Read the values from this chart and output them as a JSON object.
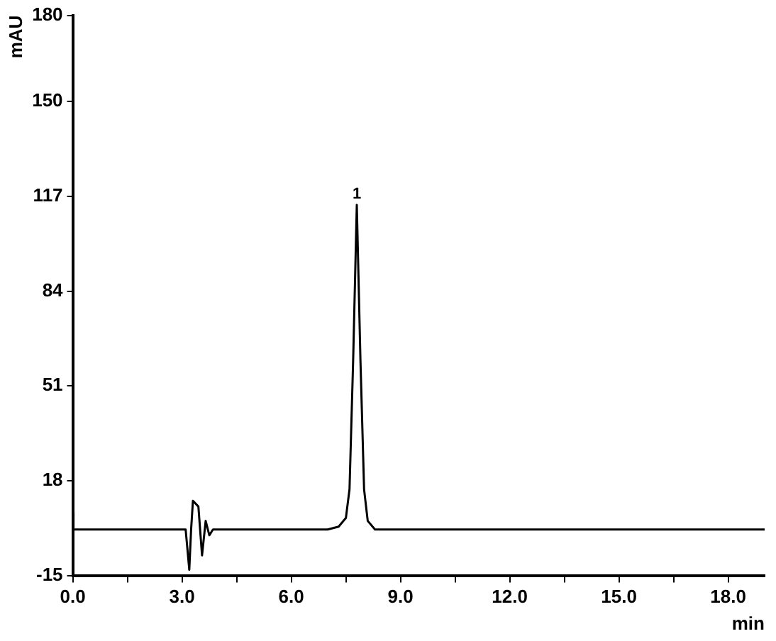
{
  "chart_data": {
    "type": "line",
    "xlabel": "min",
    "ylabel": "mAU",
    "series": [
      {
        "color": "#000000",
        "x": [
          0,
          0.02,
          3.1,
          3.2,
          3.25,
          3.3,
          3.45,
          3.55,
          3.65,
          3.75,
          3.85,
          7.0,
          7.3,
          7.5,
          7.6,
          7.7,
          7.8,
          7.9,
          8.0,
          8.1,
          8.3,
          19
        ],
        "values": [
          7,
          1,
          1,
          -13,
          1,
          11,
          9,
          -8,
          4,
          -1,
          1,
          1,
          2,
          5,
          15,
          60,
          114,
          60,
          15,
          4,
          1,
          1
        ]
      }
    ],
    "xlim": [
      0,
      19
    ],
    "xticks": [
      {
        "value": 0,
        "label": "0.0"
      },
      {
        "value": 1.5,
        "label": null
      },
      {
        "value": 3,
        "label": "3.0"
      },
      {
        "value": 4.5,
        "label": null
      },
      {
        "value": 6,
        "label": "6.0"
      },
      {
        "value": 7.5,
        "label": null
      },
      {
        "value": 9,
        "label": "9.0"
      },
      {
        "value": 10.5,
        "label": null
      },
      {
        "value": 12,
        "label": "12.0"
      },
      {
        "value": 13.5,
        "label": null
      },
      {
        "value": 15,
        "label": "15.0"
      },
      {
        "value": 16.5,
        "label": null
      },
      {
        "value": 18,
        "label": "18.0"
      }
    ],
    "ylim": [
      -15,
      180
    ],
    "yticks": [
      -15,
      18,
      51,
      84,
      117,
      150,
      180
    ],
    "annotations": [
      {
        "text": "1",
        "x": 7.8,
        "y": 114
      }
    ],
    "grid": false,
    "legend": false,
    "marker": "none",
    "line_style": "solid"
  }
}
